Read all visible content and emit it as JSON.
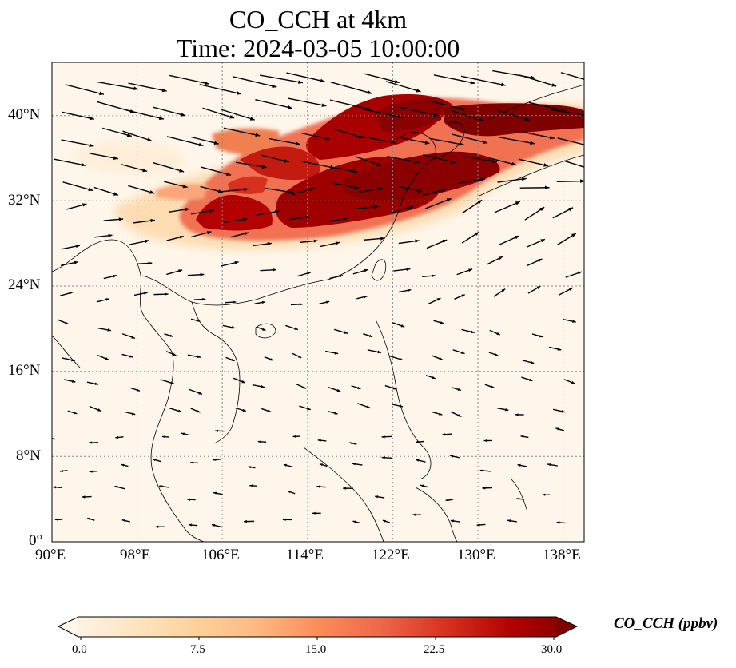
{
  "title": {
    "line1": "CO_CCH at 4km",
    "line2": "Time: 2024-03-05 10:00:00"
  },
  "map": {
    "lon_range": [
      90,
      140
    ],
    "lat_range": [
      0,
      45
    ],
    "lon_ticks": [
      {
        "value": 90,
        "label": "90°E"
      },
      {
        "value": 98,
        "label": "98°E"
      },
      {
        "value": 106,
        "label": "106°E"
      },
      {
        "value": 114,
        "label": "114°E"
      },
      {
        "value": 122,
        "label": "122°E"
      },
      {
        "value": 130,
        "label": "130°E"
      },
      {
        "value": 138,
        "label": "138°E"
      }
    ],
    "lat_ticks": [
      {
        "value": 0,
        "label": "0°"
      },
      {
        "value": 8,
        "label": "8°N"
      },
      {
        "value": 16,
        "label": "16°N"
      },
      {
        "value": 24,
        "label": "24°N"
      },
      {
        "value": 32,
        "label": "32°N"
      },
      {
        "value": 40,
        "label": "40°N"
      }
    ],
    "gridlines": true,
    "field": "CO_CCH",
    "overlay": "wind vectors"
  },
  "colorbar": {
    "label": "CO_CCH (ppbv)",
    "min": 0,
    "max": 30,
    "ticks": [
      "0.0",
      "7.5",
      "15.0",
      "22.5",
      "30.0"
    ],
    "extend": "both",
    "colormap": [
      "#fff7ec",
      "#fee8c8",
      "#fdd49e",
      "#fdbb84",
      "#fc8d59",
      "#ef6548",
      "#d7301f",
      "#b30000",
      "#7f0000"
    ]
  }
}
